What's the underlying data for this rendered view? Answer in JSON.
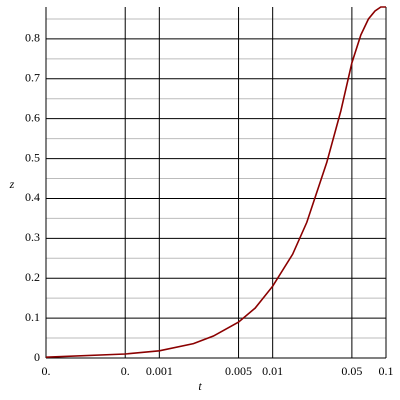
{
  "chart_data": {
    "type": "line",
    "x_label": "t",
    "y_label": "z",
    "x": [
      0.0001,
      0.0005,
      0.001,
      0.002,
      0.003,
      0.005,
      0.007,
      0.01,
      0.015,
      0.02,
      0.03,
      0.04,
      0.05,
      0.06,
      0.07,
      0.08,
      0.09,
      0.1
    ],
    "series": [
      {
        "color": "#8b0000",
        "values": [
          0.002,
          0.01,
          0.018,
          0.036,
          0.055,
          0.09,
          0.125,
          0.18,
          0.26,
          0.34,
          0.49,
          0.62,
          0.74,
          0.81,
          0.85,
          0.87,
          0.88,
          0.88
        ]
      }
    ],
    "xscale": "log",
    "xlim": [
      0.0001,
      0.1
    ],
    "xticks": [
      {
        "value": 0.0001,
        "label": "0."
      },
      {
        "value": 0.0005,
        "label": "0."
      },
      0.001,
      0.005,
      0.01,
      0.05,
      0.1
    ],
    "ylim": [
      0,
      0.88
    ],
    "yticks": [
      0,
      0.1,
      0.2,
      0.3,
      0.4,
      0.5,
      0.6,
      0.7,
      0.8
    ],
    "yminorticks": [
      0.05,
      0.15,
      0.25,
      0.35,
      0.45,
      0.55,
      0.65,
      0.75,
      0.85
    ],
    "grid": true
  }
}
